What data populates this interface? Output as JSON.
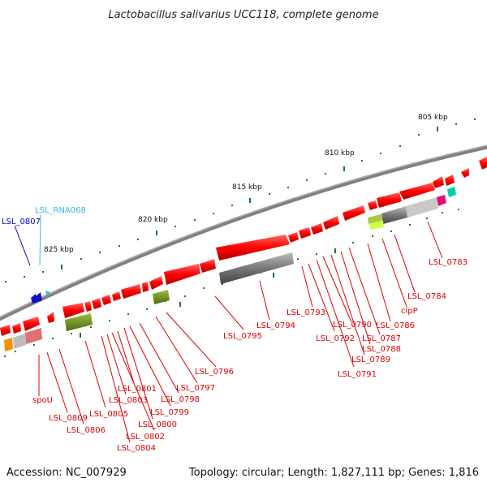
{
  "title": "Lactobacillus salivarius UCC118, complete genome",
  "footer": {
    "accession": "Accession: NC_007929",
    "summary": "Topology: circular; Length: 1,827,111 bp; Genes: 1,816"
  },
  "scale_labels": [
    "805 kbp",
    "810 kbp",
    "815 kbp",
    "820 kbp",
    "825 kbp"
  ],
  "colors": {
    "backbone": "#808080",
    "gene_red": "#ff0000",
    "label_red": "#dd0000",
    "label_blue": "#0000cc",
    "label_cyan": "#33bbdd",
    "tick_green": "#1a7a1a"
  },
  "gene_labels_top": [
    {
      "text": "LSL_0807",
      "color": "blue"
    },
    {
      "text": "LSL_RNA068",
      "color": "cyan"
    }
  ],
  "gene_labels": [
    "LSL_0783",
    "LSL_0784",
    "clpP",
    "LSL_0786",
    "LSL_0787",
    "LSL_0788",
    "LSL_0789",
    "LSL_0790",
    "LSL_0791",
    "LSL_0792",
    "LSL_0793",
    "LSL_0794",
    "LSL_0795",
    "LSL_0796",
    "LSL_0797",
    "LSL_0798",
    "LSL_0799",
    "LSL_0800",
    "LSL_0801",
    "LSL_0802",
    "LSL_0803",
    "LSL_0804",
    "LSL_0805",
    "LSL_0806",
    "LSL_0809",
    "spoU"
  ]
}
